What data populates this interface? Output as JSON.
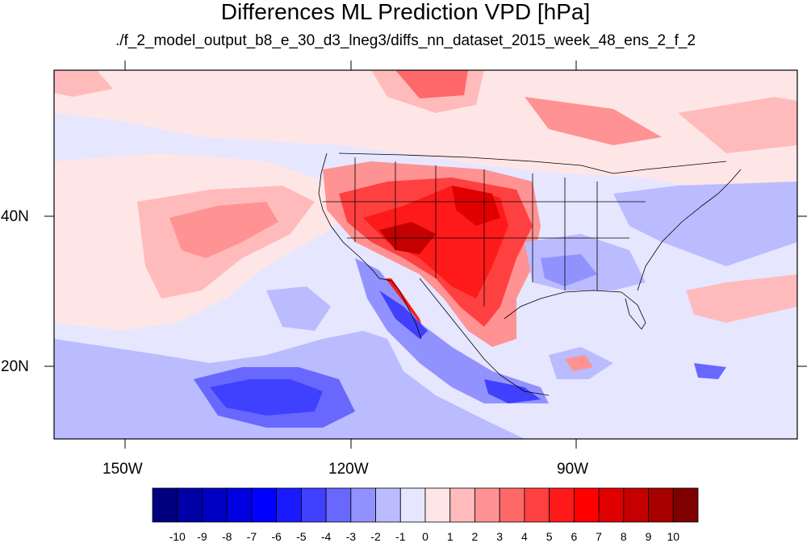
{
  "title": "Differences ML Prediction VPD [hPa]",
  "subtitle": "./f_2_model_output_b8_e_30_d3_lneg3/diffs_nn_dataset_2015_week_48_ens_2_f_2",
  "lat_labels": [
    "40N",
    "20N"
  ],
  "lon_labels": [
    "150W",
    "120W",
    "90W"
  ],
  "colorbar": {
    "labels": [
      "-10",
      "-9",
      "-8",
      "-7",
      "-6",
      "-5",
      "-4",
      "-3",
      "-2",
      "-1",
      "0",
      "1",
      "2",
      "3",
      "4",
      "5",
      "6",
      "7",
      "8",
      "9",
      "10"
    ],
    "colors": [
      "#00007f",
      "#0000a6",
      "#0000c4",
      "#0000e0",
      "#0000ff",
      "#1a1aff",
      "#4040ff",
      "#6868ff",
      "#9292ff",
      "#bbbbff",
      "#e6e6ff",
      "#ffe6e6",
      "#ffbbbb",
      "#ff9292",
      "#ff6868",
      "#ff4040",
      "#ff1a1a",
      "#ff0000",
      "#e00000",
      "#c40000",
      "#a60000",
      "#7f0000"
    ]
  },
  "colors": {
    "land_outline": "#000000",
    "ocean_background": "#e6e6ff"
  }
}
